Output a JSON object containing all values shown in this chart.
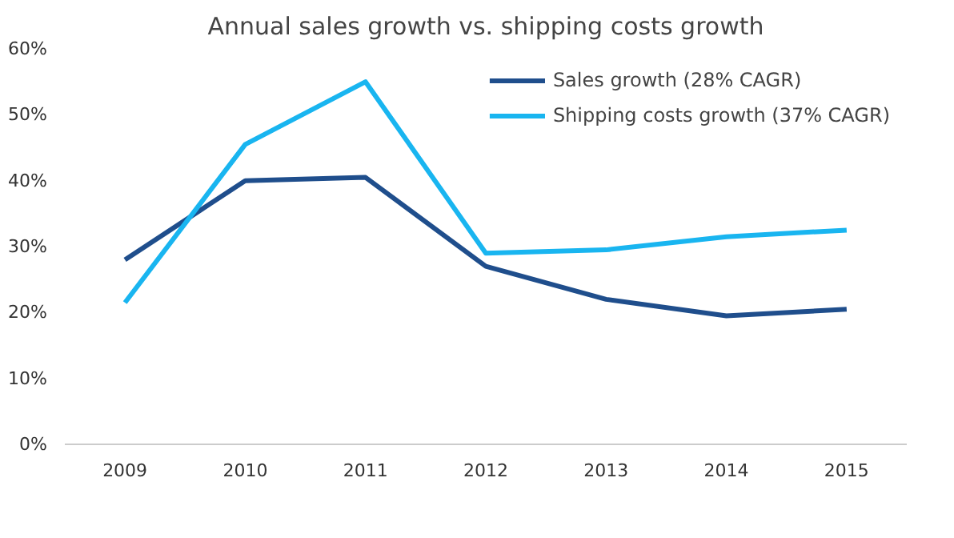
{
  "chart_data": {
    "type": "line",
    "title": "Annual sales growth vs. shipping costs growth",
    "categories": [
      "2009",
      "2010",
      "2011",
      "2012",
      "2013",
      "2014",
      "2015"
    ],
    "series": [
      {
        "name": "Sales growth (28% CAGR)",
        "color": "#1f4e8c",
        "values": [
          28,
          40,
          40.5,
          27,
          22,
          19.5,
          20.5
        ]
      },
      {
        "name": "Shipping costs growth (37% CAGR)",
        "color": "#19b5f0",
        "values": [
          21.5,
          45.5,
          55,
          29,
          29.5,
          31.5,
          32.5
        ]
      }
    ],
    "ylim": [
      0,
      60
    ],
    "yticks": [
      {
        "value": 0,
        "label": "0%"
      },
      {
        "value": 10,
        "label": "10%"
      },
      {
        "value": 20,
        "label": "20%"
      },
      {
        "value": 30,
        "label": "30%"
      },
      {
        "value": 40,
        "label": "40%"
      },
      {
        "value": 50,
        "label": "50%"
      },
      {
        "value": 60,
        "label": "60%"
      }
    ],
    "grid": false,
    "legend": "top right",
    "marker": "none",
    "line_style": "solid"
  }
}
